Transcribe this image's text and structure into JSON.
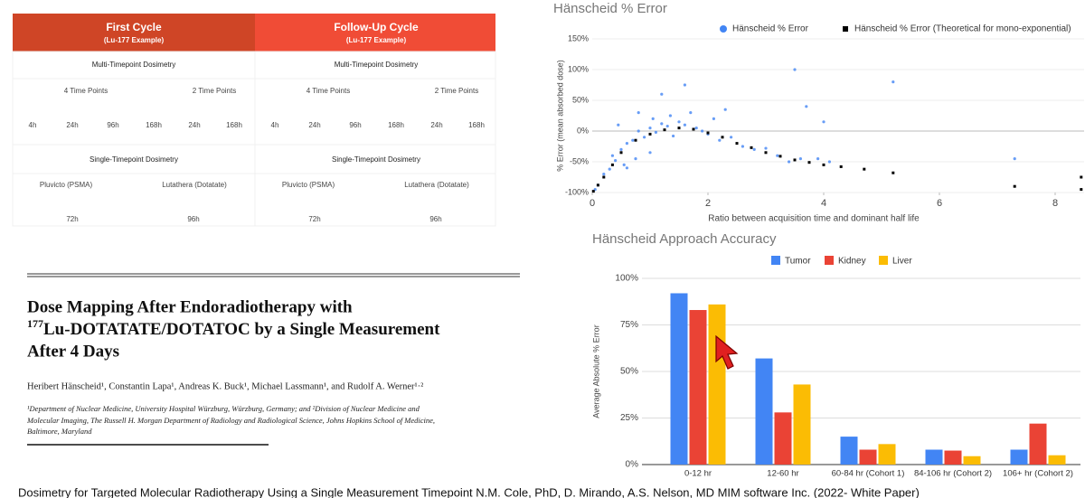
{
  "table": {
    "cycles": [
      {
        "title": "First Cycle",
        "subtitle": "(Lu-177 Example)",
        "multi_label": "Multi-Timepoint Dosimetry",
        "groups": [
          "4 Time Points",
          "2 Time Points"
        ],
        "timepoints": [
          "4h",
          "24h",
          "96h",
          "168h",
          "24h",
          "168h"
        ],
        "single_label": "Single-Timepoint Dosimetry",
        "drugs": [
          "Pluvicto (PSMA)",
          "Lutathera (Dotatate)"
        ],
        "times": [
          "72h",
          "96h"
        ]
      },
      {
        "title": "Follow-Up Cycle",
        "subtitle": "(Lu-177 Example)",
        "multi_label": "Multi-Timepoint Dosimetry",
        "groups": [
          "4 Time Points",
          "2 Time Points"
        ],
        "timepoints": [
          "4h",
          "24h",
          "96h",
          "168h",
          "24h",
          "168h"
        ],
        "single_label": "Single-Timepoint Dosimetry",
        "drugs": [
          "Pluvicto (PSMA)",
          "Lutathera (Dotatate)"
        ],
        "times": [
          "72h",
          "96h"
        ]
      }
    ]
  },
  "paper": {
    "title_line1": "Dose Mapping After Endoradiotherapy with",
    "title_sup": "177",
    "title_line2": "Lu-DOTATATE/DOTATOC by a Single Measurement",
    "title_line3": "After 4 Days",
    "authors": "Heribert Hänscheid¹, Constantin Lapa¹, Andreas K. Buck¹, Michael Lassmann¹, and Rudolf A. Werner¹·²",
    "affiliation": [
      "¹Department of Nuclear Medicine, University Hospital Würzburg, Würzburg, Germany; and ²Division of Nuclear Medicine and",
      "Molecular Imaging, The Russell H. Morgan Department of Radiology and Radiological Science, Johns Hopkins School of Medicine,",
      "Baltimore, Maryland"
    ]
  },
  "caption": "Dosimetry for Targeted Molecular Radiotherapy Using a Single Measurement Timepoint N.M. Cole, PhD, D. Mirando, A.S. Nelson, MD MIM software Inc. (2022- White Paper)",
  "chart_data": [
    {
      "type": "scatter",
      "title": "Hänscheid % Error",
      "x_label": "Ratio between acquisition time and dominant half life",
      "y_label": "% Error (mean absorbed dose)",
      "xlim": [
        0,
        8.5
      ],
      "xticks": [
        0,
        2,
        4,
        6,
        8
      ],
      "ylim": [
        -100,
        150
      ],
      "yticks": [
        {
          "value": -100,
          "label": "-100%"
        },
        {
          "value": -50,
          "label": "-50%"
        },
        {
          "value": 0,
          "label": "0%"
        },
        {
          "value": 50,
          "label": "50%"
        },
        {
          "value": 100,
          "label": "100%"
        },
        {
          "value": 150,
          "label": "150%"
        }
      ],
      "grid": true,
      "series": [
        {
          "name": "Hänscheid % Error",
          "color": "#4285f4",
          "marker": "circle",
          "x": [
            0.05,
            0.1,
            0.2,
            0.3,
            0.35,
            0.4,
            0.5,
            0.55,
            0.6,
            0.7,
            0.75,
            0.8,
            0.9,
            1.0,
            1.05,
            1.1,
            1.2,
            1.3,
            1.35,
            1.4,
            1.5,
            1.6,
            1.7,
            1.8,
            1.9,
            2.0,
            2.1,
            2.2,
            2.4,
            2.6,
            2.8,
            3.0,
            3.2,
            3.4,
            3.5,
            3.7,
            3.9,
            4.1,
            4.0,
            3.6,
            1.2,
            1.6,
            0.6,
            0.8,
            2.3,
            5.2,
            7.3,
            0.45,
            1.0
          ],
          "values": [
            -95,
            -88,
            -70,
            -62,
            -40,
            -48,
            -30,
            -55,
            -20,
            -15,
            -45,
            0,
            -10,
            5,
            20,
            -2,
            12,
            8,
            25,
            -8,
            15,
            10,
            30,
            5,
            0,
            -5,
            20,
            -15,
            -10,
            -25,
            -30,
            -28,
            -40,
            -50,
            100,
            40,
            -45,
            -50,
            15,
            -45,
            60,
            75,
            -60,
            30,
            35,
            80,
            -45,
            10,
            -35
          ]
        },
        {
          "name": "Hänscheid % Error (Theoretical for mono-exponential)",
          "color": "#000000",
          "marker": "square",
          "x": [
            0.02,
            0.1,
            0.2,
            0.35,
            0.5,
            0.75,
            1.0,
            1.25,
            1.5,
            1.75,
            2.0,
            2.25,
            2.5,
            2.75,
            3.0,
            3.25,
            3.5,
            3.75,
            4.0,
            4.3,
            4.7,
            5.2,
            7.3,
            8.45,
            8.45
          ],
          "values": [
            -98,
            -88,
            -75,
            -55,
            -35,
            -15,
            -5,
            2,
            5,
            3,
            -3,
            -10,
            -20,
            -27,
            -35,
            -41,
            -47,
            -51,
            -55,
            -58,
            -62,
            -68,
            -90,
            -95,
            -75
          ]
        }
      ]
    },
    {
      "type": "bar",
      "title": "Hänscheid Approach Accuracy",
      "y_label": "Average Absolute % Error",
      "categories": [
        "0-12 hr",
        "12-60 hr",
        "60-84 hr (Cohort 1)",
        "84-106 hr (Cohort 2)",
        "106+ hr (Cohort 2)"
      ],
      "ylim": [
        0,
        100
      ],
      "yticks": [
        {
          "value": 0,
          "label": "0%"
        },
        {
          "value": 25,
          "label": "25%"
        },
        {
          "value": 50,
          "label": "50%"
        },
        {
          "value": 75,
          "label": "75%"
        },
        {
          "value": 100,
          "label": "100%"
        }
      ],
      "grid": true,
      "series": [
        {
          "name": "Tumor",
          "color": "#4285f4",
          "values": [
            92,
            57,
            15,
            8,
            8
          ]
        },
        {
          "name": "Kidney",
          "color": "#ea4335",
          "values": [
            83,
            28,
            8,
            7.5,
            22
          ]
        },
        {
          "name": "Liver",
          "color": "#fbbc04",
          "values": [
            86,
            43,
            11,
            4.5,
            5
          ]
        }
      ]
    }
  ]
}
